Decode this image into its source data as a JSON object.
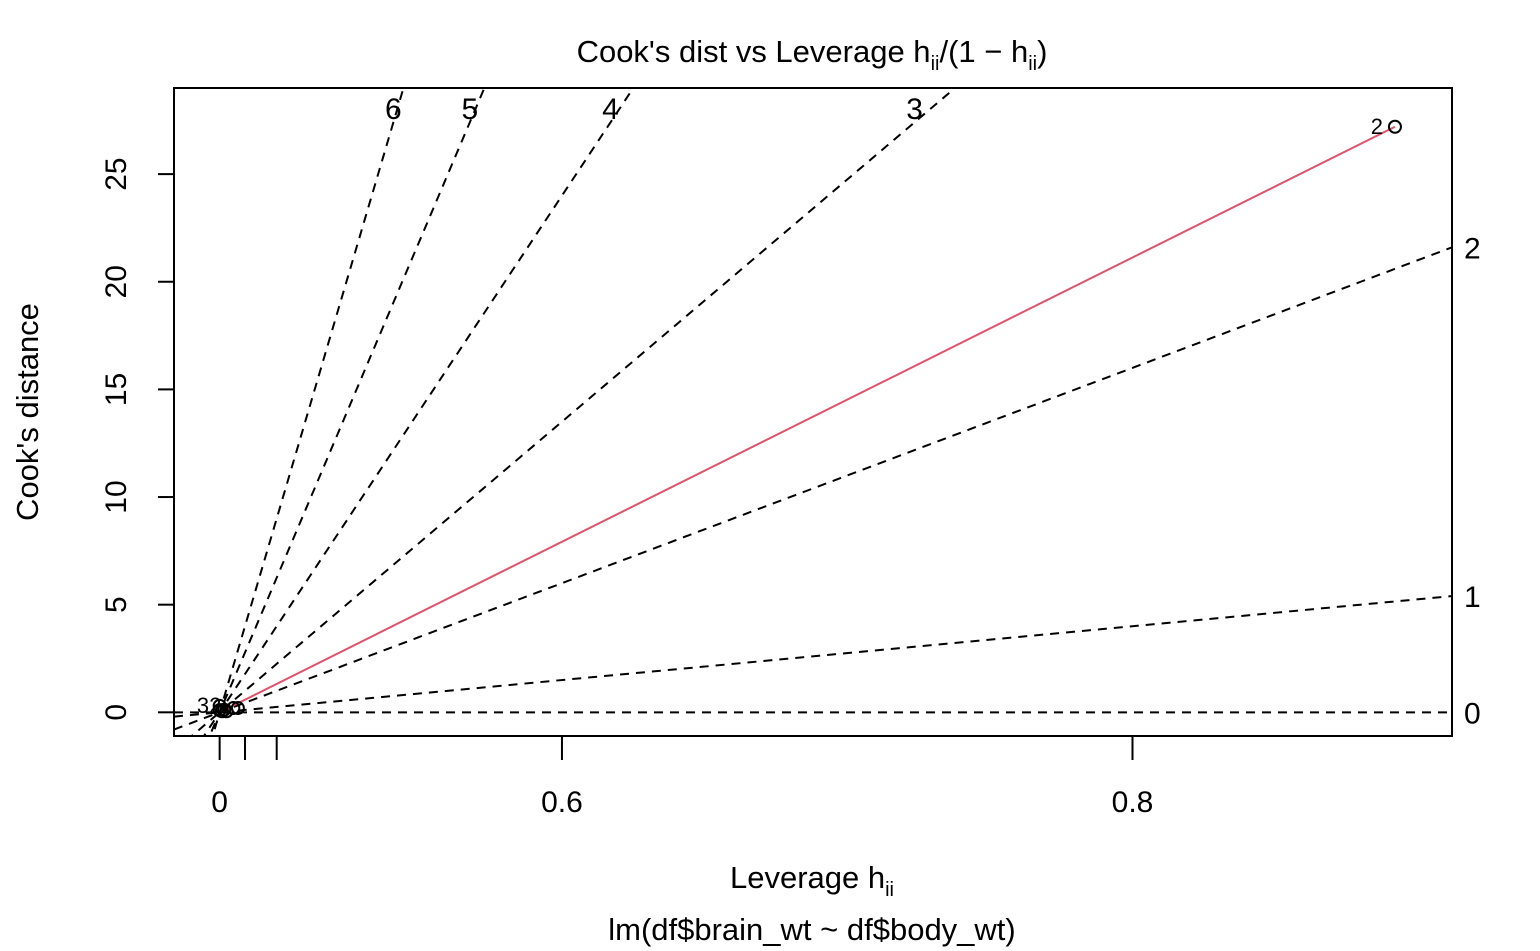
{
  "chart_data": {
    "type": "scatter",
    "title_main": "Cook's dist vs Leverage  h",
    "title_sub": "ii",
    "title_paren_open": "/(1 − h",
    "title_paren_close": ")",
    "xlabel_main": "Leverage  h",
    "xlabel_sub": "ii",
    "ylabel": "Cook's distance",
    "caption": "lm(df$brain_wt ~ df$body_wt)",
    "x_scale": "h/(1-h)",
    "xlim_ratio": [
      -0.2,
      5.4
    ],
    "ylim": [
      -1.1,
      29.0
    ],
    "x_ticks": [
      {
        "value": 0,
        "label": "0"
      },
      {
        "value": 0.1,
        "label": ""
      },
      {
        "value": 0.2,
        "label": ""
      },
      {
        "value": 0.6,
        "label": "0.6"
      },
      {
        "value": 0.8,
        "label": "0.8"
      }
    ],
    "y_ticks": [
      0,
      5,
      10,
      15,
      20,
      25
    ],
    "contours": [
      {
        "std_resid": 0,
        "label": "0"
      },
      {
        "std_resid": 1,
        "label": "1"
      },
      {
        "std_resid": 2,
        "label": "2"
      },
      {
        "std_resid": 3,
        "label": "3"
      },
      {
        "std_resid": 4,
        "label": "4"
      },
      {
        "std_resid": 5,
        "label": "5"
      },
      {
        "std_resid": 6,
        "label": "6"
      }
    ],
    "points": [
      {
        "x": 0.0,
        "y": 0.3
      },
      {
        "x": 0.0,
        "y": 0.1
      },
      {
        "x": 0.01,
        "y": 0.05
      },
      {
        "x": 0.02,
        "y": 0.12
      },
      {
        "x": 0.03,
        "y": 0.05
      },
      {
        "x": 0.06,
        "y": 0.2
      },
      {
        "x": 0.08,
        "y": 0.2
      },
      {
        "x": 5.15,
        "y": 27.2
      }
    ],
    "point_labels": [
      {
        "x": 0.06,
        "y": 0.3,
        "text": "32"
      },
      {
        "x": 5.15,
        "y": 27.2,
        "text": "2"
      }
    ],
    "smooth_line": [
      [
        0.0,
        0.0
      ],
      [
        5.15,
        27.2
      ]
    ],
    "colors": {
      "smooth": "#df536b",
      "contour": "#000000",
      "axis": "#000000"
    }
  }
}
